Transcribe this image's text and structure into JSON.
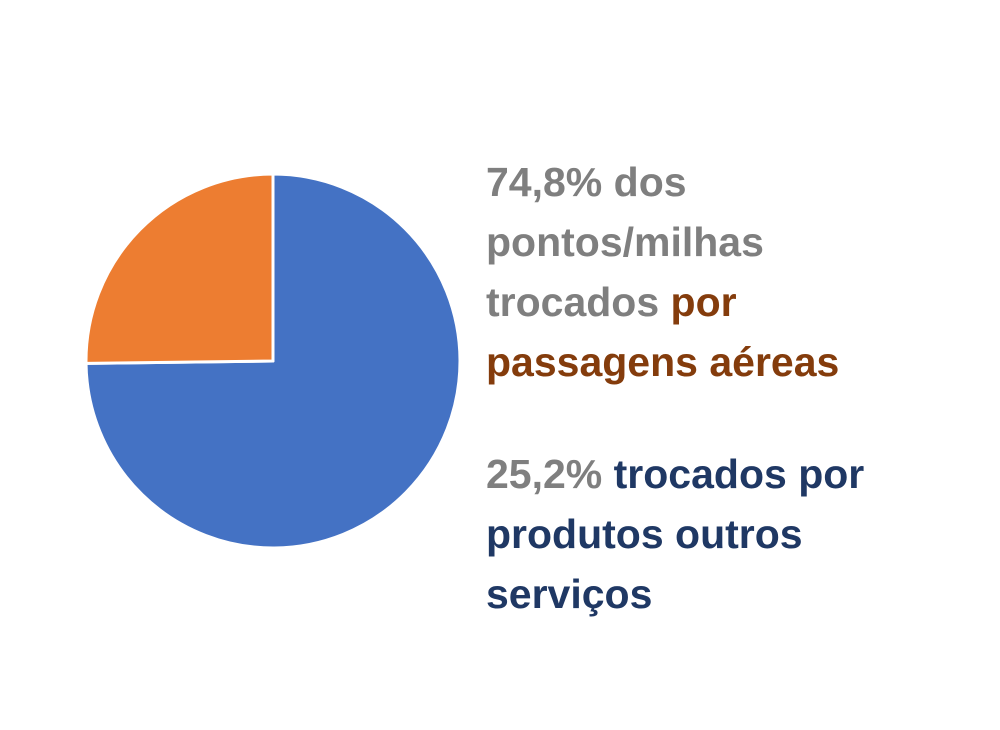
{
  "chart_data": {
    "type": "pie",
    "values": [
      74.8,
      25.2
    ],
    "colors": [
      "#4472c4",
      "#ed7d31"
    ],
    "start_angle": 0,
    "direction": "clockwise",
    "annotations": [
      {
        "lines": [
          [
            {
              "text": "74,8% dos",
              "color": "#7f7f7f"
            }
          ],
          [
            {
              "text": "pontos/milhas",
              "color": "#7f7f7f"
            }
          ],
          [
            {
              "text": "trocados ",
              "color": "#7f7f7f"
            },
            {
              "text": "por",
              "color": "#843c0c"
            }
          ],
          [
            {
              "text": "passagens aéreas",
              "color": "#843c0c"
            }
          ]
        ]
      },
      {
        "lines": [
          [
            {
              "text": "25,2% ",
              "color": "#7f7f7f"
            },
            {
              "text": "trocados por",
              "color": "#1f3864"
            }
          ],
          [
            {
              "text": "produtos outros",
              "color": "#1f3864"
            }
          ],
          [
            {
              "text": "serviços",
              "color": "#1f3864"
            }
          ]
        ]
      }
    ]
  }
}
